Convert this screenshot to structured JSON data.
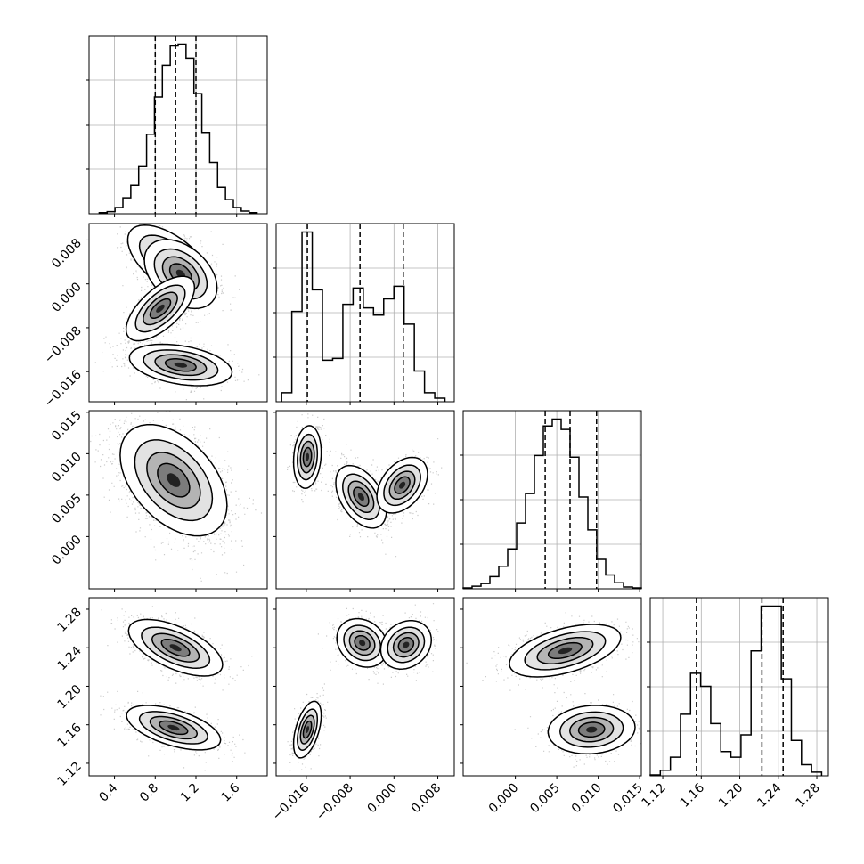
{
  "chart_data": {
    "type": "corner",
    "parameters": [
      {
        "range": [
          0.15,
          1.9
        ],
        "ticks": [
          0.4,
          0.8,
          1.2,
          1.6
        ],
        "tick_labels": [
          "0.4",
          "0.8",
          "1.2",
          "1.6"
        ],
        "quantiles": [
          0.8,
          1.0,
          1.2
        ],
        "histogram": {
          "edges": [
            0.25,
            1.8
          ],
          "counts": [
            0.6,
            1.2,
            3.5,
            9,
            16,
            27,
            45,
            66,
            84,
            95,
            96,
            88,
            68,
            46,
            29,
            15,
            8,
            3.5,
            1.5,
            0.6
          ]
        }
      },
      {
        "range": [
          -0.0215,
          0.011
        ],
        "ticks": [
          -0.016,
          -0.008,
          0.0,
          0.008
        ],
        "tick_labels": [
          "−0.016",
          "−0.008",
          "0.000",
          "0.008"
        ],
        "quantiles": [
          -0.0158,
          -0.0062,
          0.0017
        ],
        "histogram": {
          "edges": [
            -0.0205,
            0.0093
          ],
          "counts": [
            5,
            50,
            94,
            62,
            23,
            24,
            54,
            63,
            52,
            48,
            57,
            64,
            43,
            17,
            5,
            2
          ]
        }
      },
      {
        "range": [
          -0.0063,
          0.0152
        ],
        "ticks": [
          0.0,
          0.005,
          0.01,
          0.015
        ],
        "tick_labels": [
          "0.000",
          "0.005",
          "0.010",
          "0.015"
        ],
        "quantiles": [
          0.0036,
          0.0066,
          0.0098
        ],
        "histogram": {
          "edges": [
            -0.0063,
            0.0152
          ],
          "counts": [
            0.5,
            1.5,
            3,
            7,
            13,
            23,
            38,
            55,
            77,
            94,
            98,
            92,
            76,
            53,
            34,
            17,
            8,
            3.5,
            1,
            0.5
          ]
        }
      },
      {
        "range": [
          1.107,
          1.292
        ],
        "ticks": [
          1.12,
          1.16,
          1.2,
          1.24,
          1.28
        ],
        "tick_labels": [
          "1.12",
          "1.16",
          "1.20",
          "1.24",
          "1.28"
        ],
        "quantiles": [
          1.155,
          1.223,
          1.245
        ],
        "histogram": {
          "edges": [
            1.107,
            1.285
          ],
          "counts": [
            0.5,
            3,
            10,
            33,
            55,
            48,
            28,
            13,
            10,
            22,
            67,
            91,
            91,
            52,
            19,
            6,
            2
          ]
        }
      }
    ],
    "panels": [
      {
        "row": 1,
        "col": 0,
        "clusters": [
          {
            "center": [
              0.95,
              0.004
            ],
            "spread": [
              0.2,
              0.0032
            ],
            "rho": -0.6,
            "n": 900
          },
          {
            "center": [
              1.05,
              0.0018
            ],
            "spread": [
              0.17,
              0.003
            ],
            "rho": -0.4,
            "n": 700
          },
          {
            "center": [
              0.85,
              -0.0045
            ],
            "spread": [
              0.16,
              0.0028
            ],
            "rho": 0.65,
            "n": 1100
          },
          {
            "center": [
              1.05,
              -0.0148
            ],
            "spread": [
              0.24,
              0.0018
            ],
            "rho": -0.35,
            "n": 900
          }
        ]
      },
      {
        "row": 2,
        "col": 0,
        "clusters": [
          {
            "center": [
              0.98,
              0.0068
            ],
            "spread": [
              0.25,
              0.0032
            ],
            "rho": -0.45,
            "n": 2600
          }
        ]
      },
      {
        "row": 2,
        "col": 1,
        "clusters": [
          {
            "center": [
              -0.0158,
              0.0096
            ],
            "spread": [
              0.0012,
              0.0018
            ],
            "rho": 0.15,
            "n": 900
          },
          {
            "center": [
              -0.006,
              0.0048
            ],
            "spread": [
              0.0022,
              0.0018
            ],
            "rho": -0.45,
            "n": 1000
          },
          {
            "center": [
              0.0015,
              0.0062
            ],
            "spread": [
              0.0022,
              0.0016
            ],
            "rho": 0.4,
            "n": 900
          }
        ]
      },
      {
        "row": 3,
        "col": 0,
        "clusters": [
          {
            "center": [
              1.0,
              1.24
            ],
            "spread": [
              0.22,
              0.014
            ],
            "rho": -0.6,
            "n": 1300
          },
          {
            "center": [
              0.98,
              1.157
            ],
            "spread": [
              0.22,
              0.011
            ],
            "rho": -0.55,
            "n": 900
          }
        ]
      },
      {
        "row": 3,
        "col": 1,
        "clusters": [
          {
            "center": [
              -0.0158,
              1.155
            ],
            "spread": [
              0.0012,
              0.014
            ],
            "rho": 0.5,
            "n": 800
          },
          {
            "center": [
              -0.0058,
              1.245
            ],
            "spread": [
              0.0022,
              0.012
            ],
            "rho": -0.2,
            "n": 800
          },
          {
            "center": [
              0.0022,
              1.243
            ],
            "spread": [
              0.0022,
              0.012
            ],
            "rho": 0.2,
            "n": 800
          }
        ]
      },
      {
        "row": 3,
        "col": 2,
        "clusters": [
          {
            "center": [
              0.006,
              1.237
            ],
            "spread": [
              0.0032,
              0.013
            ],
            "rho": 0.5,
            "n": 1400
          },
          {
            "center": [
              0.0092,
              1.155
            ],
            "spread": [
              0.0025,
              0.012
            ],
            "rho": 0.1,
            "n": 900
          }
        ]
      }
    ],
    "grid": true
  }
}
